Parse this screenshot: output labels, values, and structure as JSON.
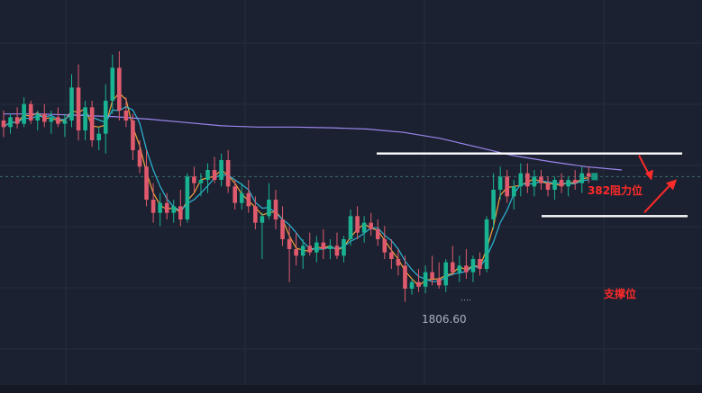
{
  "chart_data": {
    "type": "candlestick",
    "grid": true,
    "candles": [
      {
        "o": 1833.0,
        "h": 1834.5,
        "l": 1830.5,
        "c": 1832.0,
        "up": false
      },
      {
        "o": 1832.0,
        "h": 1834.0,
        "l": 1831.0,
        "c": 1833.5,
        "up": true
      },
      {
        "o": 1833.5,
        "h": 1835.0,
        "l": 1831.8,
        "c": 1832.5,
        "up": false
      },
      {
        "o": 1832.5,
        "h": 1836.5,
        "l": 1832.0,
        "c": 1835.5,
        "up": true
      },
      {
        "o": 1835.5,
        "h": 1836.0,
        "l": 1832.5,
        "c": 1833.0,
        "up": false
      },
      {
        "o": 1833.0,
        "h": 1834.5,
        "l": 1831.5,
        "c": 1834.0,
        "up": true
      },
      {
        "o": 1834.0,
        "h": 1835.5,
        "l": 1832.0,
        "c": 1832.8,
        "up": false
      },
      {
        "o": 1832.8,
        "h": 1834.5,
        "l": 1831.0,
        "c": 1833.5,
        "up": true
      },
      {
        "o": 1833.5,
        "h": 1835.0,
        "l": 1832.0,
        "c": 1832.5,
        "up": false
      },
      {
        "o": 1832.5,
        "h": 1834.0,
        "l": 1830.5,
        "c": 1833.0,
        "up": true
      },
      {
        "o": 1833.0,
        "h": 1840.0,
        "l": 1832.0,
        "c": 1838.0,
        "up": true
      },
      {
        "o": 1838.0,
        "h": 1841.5,
        "l": 1830.0,
        "c": 1831.5,
        "up": false
      },
      {
        "o": 1831.5,
        "h": 1836.0,
        "l": 1830.0,
        "c": 1835.0,
        "up": true
      },
      {
        "o": 1835.0,
        "h": 1836.0,
        "l": 1829.0,
        "c": 1830.0,
        "up": false
      },
      {
        "o": 1830.0,
        "h": 1832.0,
        "l": 1828.5,
        "c": 1831.0,
        "up": true
      },
      {
        "o": 1831.0,
        "h": 1838.5,
        "l": 1828.0,
        "c": 1836.0,
        "up": true
      },
      {
        "o": 1836.0,
        "h": 1843.0,
        "l": 1834.0,
        "c": 1841.0,
        "up": true
      },
      {
        "o": 1841.0,
        "h": 1843.5,
        "l": 1833.0,
        "c": 1834.5,
        "up": false
      },
      {
        "o": 1834.5,
        "h": 1836.5,
        "l": 1832.0,
        "c": 1833.0,
        "up": false
      },
      {
        "o": 1833.0,
        "h": 1834.0,
        "l": 1827.0,
        "c": 1828.5,
        "up": false
      },
      {
        "o": 1828.5,
        "h": 1830.0,
        "l": 1825.0,
        "c": 1826.0,
        "up": false
      },
      {
        "o": 1826.0,
        "h": 1828.5,
        "l": 1820.0,
        "c": 1821.0,
        "up": false
      },
      {
        "o": 1821.0,
        "h": 1823.5,
        "l": 1817.5,
        "c": 1819.0,
        "up": false
      },
      {
        "o": 1819.0,
        "h": 1822.0,
        "l": 1817.0,
        "c": 1820.5,
        "up": true
      },
      {
        "o": 1820.5,
        "h": 1822.0,
        "l": 1818.0,
        "c": 1819.0,
        "up": false
      },
      {
        "o": 1819.0,
        "h": 1821.0,
        "l": 1817.5,
        "c": 1820.0,
        "up": true
      },
      {
        "o": 1820.0,
        "h": 1822.5,
        "l": 1817.0,
        "c": 1818.0,
        "up": false
      },
      {
        "o": 1818.0,
        "h": 1825.0,
        "l": 1817.5,
        "c": 1824.5,
        "up": true
      },
      {
        "o": 1824.5,
        "h": 1826.0,
        "l": 1822.0,
        "c": 1823.5,
        "up": false
      },
      {
        "o": 1823.5,
        "h": 1825.0,
        "l": 1821.5,
        "c": 1824.0,
        "up": true
      },
      {
        "o": 1824.0,
        "h": 1826.5,
        "l": 1822.0,
        "c": 1825.5,
        "up": true
      },
      {
        "o": 1825.5,
        "h": 1827.5,
        "l": 1823.5,
        "c": 1824.0,
        "up": false
      },
      {
        "o": 1824.0,
        "h": 1828.0,
        "l": 1823.0,
        "c": 1827.0,
        "up": true
      },
      {
        "o": 1827.0,
        "h": 1828.5,
        "l": 1822.0,
        "c": 1823.0,
        "up": false
      },
      {
        "o": 1823.0,
        "h": 1824.0,
        "l": 1819.5,
        "c": 1820.5,
        "up": false
      },
      {
        "o": 1820.5,
        "h": 1823.5,
        "l": 1819.5,
        "c": 1822.0,
        "up": true
      },
      {
        "o": 1822.0,
        "h": 1824.0,
        "l": 1819.0,
        "c": 1820.0,
        "up": false
      },
      {
        "o": 1820.0,
        "h": 1821.5,
        "l": 1816.5,
        "c": 1817.5,
        "up": false
      },
      {
        "o": 1817.5,
        "h": 1819.0,
        "l": 1812.0,
        "c": 1818.5,
        "up": true
      },
      {
        "o": 1818.5,
        "h": 1823.5,
        "l": 1818.0,
        "c": 1821.0,
        "up": true
      },
      {
        "o": 1821.0,
        "h": 1822.5,
        "l": 1816.5,
        "c": 1818.0,
        "up": false
      },
      {
        "o": 1818.0,
        "h": 1820.0,
        "l": 1814.0,
        "c": 1815.0,
        "up": false
      },
      {
        "o": 1815.0,
        "h": 1817.0,
        "l": 1808.5,
        "c": 1813.5,
        "up": false
      },
      {
        "o": 1813.5,
        "h": 1816.0,
        "l": 1811.0,
        "c": 1812.5,
        "up": false
      },
      {
        "o": 1812.5,
        "h": 1815.0,
        "l": 1810.5,
        "c": 1814.0,
        "up": true
      },
      {
        "o": 1814.0,
        "h": 1816.0,
        "l": 1812.5,
        "c": 1813.0,
        "up": false
      },
      {
        "o": 1813.0,
        "h": 1815.5,
        "l": 1811.5,
        "c": 1814.5,
        "up": true
      },
      {
        "o": 1814.5,
        "h": 1816.5,
        "l": 1812.0,
        "c": 1813.5,
        "up": false
      },
      {
        "o": 1813.5,
        "h": 1815.0,
        "l": 1812.0,
        "c": 1814.0,
        "up": true
      },
      {
        "o": 1814.0,
        "h": 1816.0,
        "l": 1812.0,
        "c": 1812.5,
        "up": false
      },
      {
        "o": 1812.5,
        "h": 1815.5,
        "l": 1811.5,
        "c": 1815.0,
        "up": true
      },
      {
        "o": 1815.0,
        "h": 1819.5,
        "l": 1814.0,
        "c": 1818.5,
        "up": true
      },
      {
        "o": 1818.5,
        "h": 1820.0,
        "l": 1815.0,
        "c": 1816.0,
        "up": false
      },
      {
        "o": 1816.0,
        "h": 1818.5,
        "l": 1814.5,
        "c": 1817.5,
        "up": true
      },
      {
        "o": 1817.5,
        "h": 1819.0,
        "l": 1815.5,
        "c": 1816.5,
        "up": false
      },
      {
        "o": 1816.5,
        "h": 1818.0,
        "l": 1814.0,
        "c": 1815.0,
        "up": false
      },
      {
        "o": 1815.0,
        "h": 1817.0,
        "l": 1812.0,
        "c": 1813.0,
        "up": false
      },
      {
        "o": 1813.0,
        "h": 1815.0,
        "l": 1810.5,
        "c": 1812.0,
        "up": false
      },
      {
        "o": 1812.0,
        "h": 1813.5,
        "l": 1809.5,
        "c": 1811.0,
        "up": false
      },
      {
        "o": 1811.0,
        "h": 1812.5,
        "l": 1805.5,
        "c": 1807.5,
        "up": false
      },
      {
        "o": 1807.5,
        "h": 1809.0,
        "l": 1806.6,
        "c": 1808.5,
        "up": true
      },
      {
        "o": 1808.5,
        "h": 1810.5,
        "l": 1807.0,
        "c": 1807.8,
        "up": false
      },
      {
        "o": 1807.8,
        "h": 1811.0,
        "l": 1806.8,
        "c": 1810.0,
        "up": true
      },
      {
        "o": 1810.0,
        "h": 1812.5,
        "l": 1808.0,
        "c": 1809.0,
        "up": false
      },
      {
        "o": 1809.0,
        "h": 1811.5,
        "l": 1807.5,
        "c": 1808.0,
        "up": false
      },
      {
        "o": 1808.0,
        "h": 1812.0,
        "l": 1807.0,
        "c": 1811.5,
        "up": true
      },
      {
        "o": 1811.5,
        "h": 1814.0,
        "l": 1809.5,
        "c": 1810.0,
        "up": false
      },
      {
        "o": 1810.0,
        "h": 1812.5,
        "l": 1808.5,
        "c": 1811.0,
        "up": true
      },
      {
        "o": 1811.0,
        "h": 1813.5,
        "l": 1809.0,
        "c": 1810.0,
        "up": false
      },
      {
        "o": 1810.0,
        "h": 1812.5,
        "l": 1808.5,
        "c": 1812.0,
        "up": true
      },
      {
        "o": 1812.0,
        "h": 1813.0,
        "l": 1809.5,
        "c": 1810.5,
        "up": false
      },
      {
        "o": 1810.5,
        "h": 1818.5,
        "l": 1810.0,
        "c": 1818.0,
        "up": true
      },
      {
        "o": 1818.0,
        "h": 1825.0,
        "l": 1816.5,
        "c": 1822.5,
        "up": true
      },
      {
        "o": 1822.5,
        "h": 1826.0,
        "l": 1821.0,
        "c": 1824.5,
        "up": true
      },
      {
        "o": 1824.5,
        "h": 1825.5,
        "l": 1820.5,
        "c": 1821.5,
        "up": false
      },
      {
        "o": 1821.5,
        "h": 1824.0,
        "l": 1819.5,
        "c": 1823.0,
        "up": true
      },
      {
        "o": 1823.0,
        "h": 1826.5,
        "l": 1821.5,
        "c": 1825.0,
        "up": true
      },
      {
        "o": 1825.0,
        "h": 1826.5,
        "l": 1822.0,
        "c": 1823.0,
        "up": false
      },
      {
        "o": 1823.0,
        "h": 1825.5,
        "l": 1821.5,
        "c": 1824.5,
        "up": true
      },
      {
        "o": 1824.5,
        "h": 1825.5,
        "l": 1822.5,
        "c": 1823.5,
        "up": false
      },
      {
        "o": 1823.5,
        "h": 1824.5,
        "l": 1821.5,
        "c": 1822.5,
        "up": false
      },
      {
        "o": 1822.5,
        "h": 1824.5,
        "l": 1821.0,
        "c": 1824.0,
        "up": true
      },
      {
        "o": 1824.0,
        "h": 1825.0,
        "l": 1822.0,
        "c": 1823.0,
        "up": false
      },
      {
        "o": 1823.0,
        "h": 1824.5,
        "l": 1821.5,
        "c": 1824.0,
        "up": true
      },
      {
        "o": 1824.0,
        "h": 1825.5,
        "l": 1822.5,
        "c": 1823.5,
        "up": false
      },
      {
        "o": 1823.5,
        "h": 1826.0,
        "l": 1822.0,
        "c": 1825.0,
        "up": true
      },
      {
        "o": 1825.0,
        "h": 1826.0,
        "l": 1823.5,
        "c": 1824.5,
        "up": false
      }
    ],
    "ma_periods": [
      3,
      5
    ],
    "long_ma": [
      1834.0,
      1834.0,
      1833.8,
      1833.6,
      1833.2,
      1832.7,
      1832.2,
      1832.0,
      1832.0,
      1831.9,
      1831.7,
      1831.2,
      1830.3,
      1829.0,
      1827.7,
      1826.8,
      1826.0,
      1825.5
    ],
    "price_label": "1806.60",
    "price_label_value": 1806.6,
    "last_price": 1824.5,
    "annotations": {
      "resistance": {
        "label": "382阻力位",
        "price": 1828.0
      },
      "support": {
        "label": "支撑位",
        "price": 1818.5
      }
    },
    "colors": {
      "background": "#1b2130",
      "up": "#19b394",
      "down": "#e05a6e",
      "ma_short": "#f2a23a",
      "ma_mid": "#2fb6d6",
      "ma_long": "#9b86ee",
      "annotation": "#ff2a2a",
      "level_line": "#ffffff",
      "grid": "#262d3c"
    }
  }
}
